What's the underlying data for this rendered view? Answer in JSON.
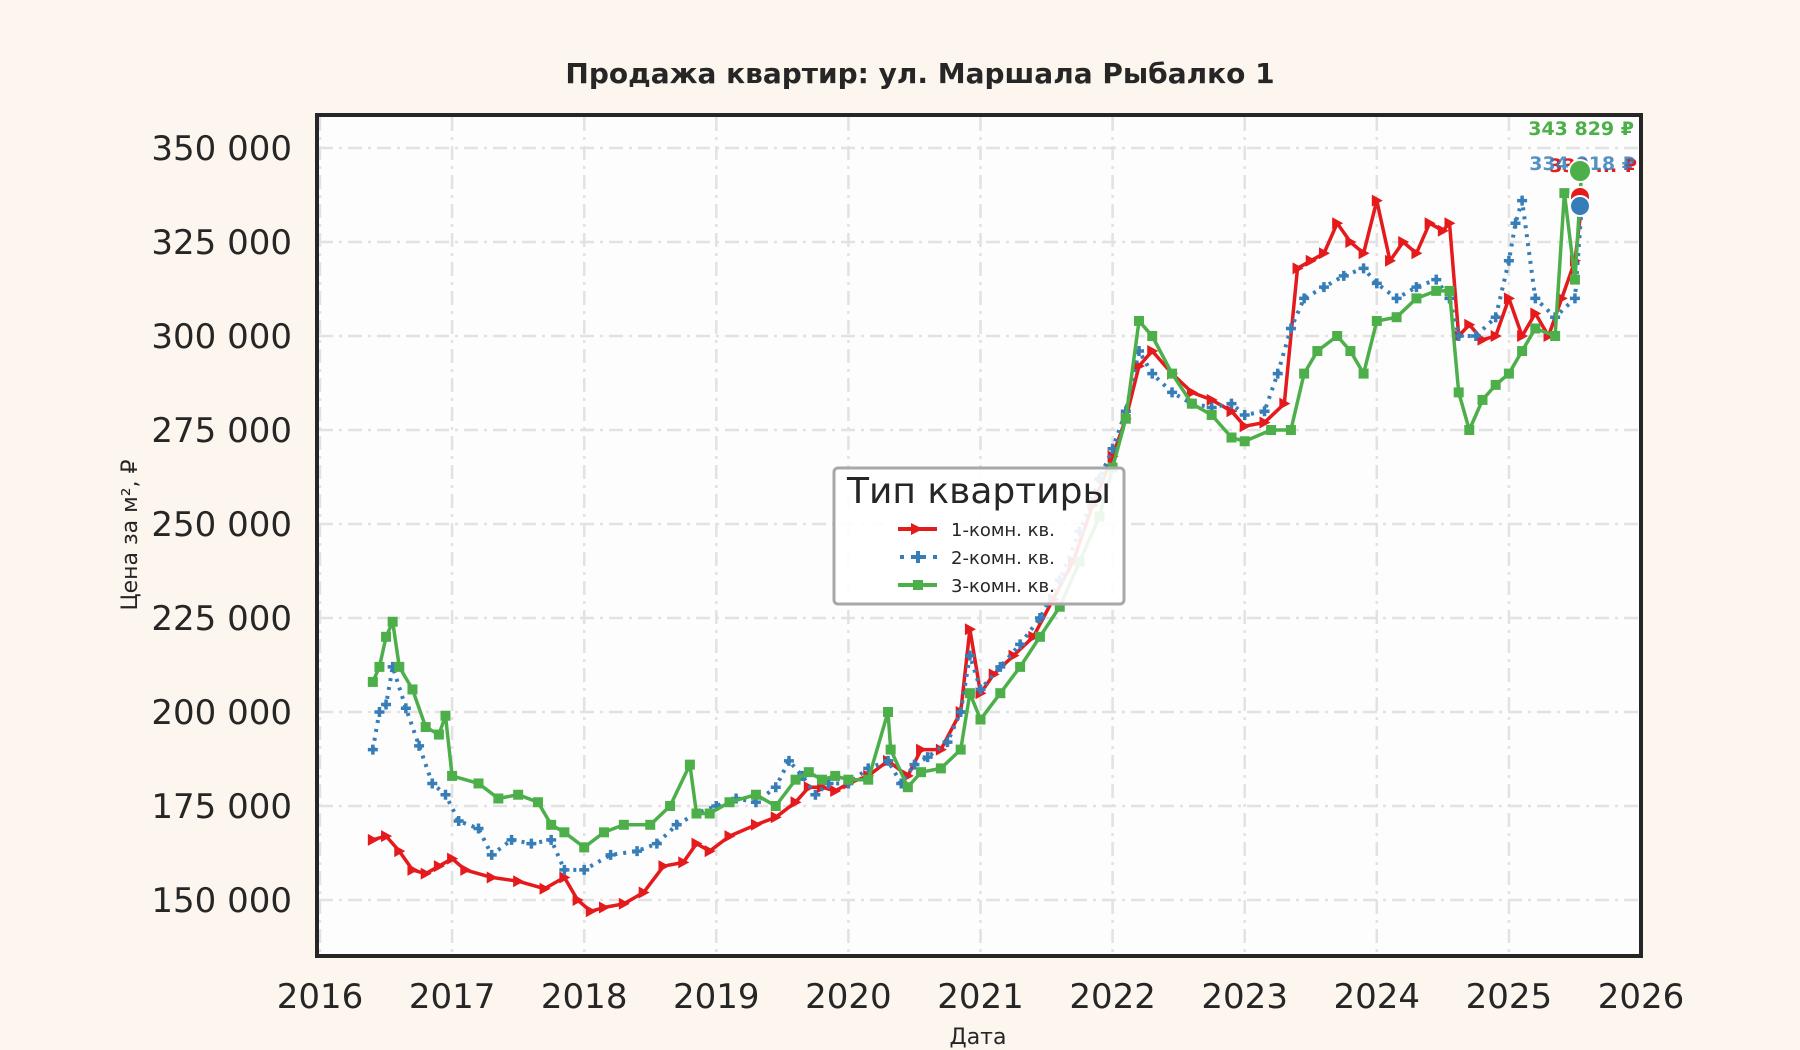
{
  "chart_data": {
    "type": "line",
    "title": "Продажа квартир: ул. Маршала Рыбалко 1",
    "xlabel": "Дата",
    "ylabel": "Цена за м², ₽",
    "xlim": [
      2016,
      2026
    ],
    "ylim": [
      136000,
      358000
    ],
    "x_ticks": [
      "2016",
      "2017",
      "2018",
      "2019",
      "2020",
      "2021",
      "2022",
      "2023",
      "2024",
      "2025",
      "2026"
    ],
    "y_ticks": [
      "150 000",
      "175 000",
      "200 000",
      "225 000",
      "250 000",
      "275 000",
      "300 000",
      "325 000",
      "350 000"
    ],
    "y_tick_values": [
      150000,
      175000,
      200000,
      225000,
      250000,
      275000,
      300000,
      325000,
      350000
    ],
    "grid": true,
    "legend": {
      "title": "Тип квартиры",
      "position": "center",
      "entries": [
        "1-комн. кв.",
        "2-комн. кв.",
        "3-комн. кв."
      ]
    },
    "series": [
      {
        "name": "1-комн. кв.",
        "color": "#e41a1c",
        "marker": "triangle-right",
        "linestyle": "solid",
        "x": [
          2016.4,
          2016.5,
          2016.6,
          2016.7,
          2016.8,
          2016.9,
          2017.0,
          2017.1,
          2017.3,
          2017.5,
          2017.7,
          2017.85,
          2017.95,
          2018.05,
          2018.15,
          2018.3,
          2018.45,
          2018.6,
          2018.75,
          2018.85,
          2018.95,
          2019.1,
          2019.3,
          2019.45,
          2019.6,
          2019.7,
          2019.8,
          2019.9,
          2020.0,
          2020.15,
          2020.3,
          2020.45,
          2020.55,
          2020.7,
          2020.85,
          2020.92,
          2021.0,
          2021.1,
          2021.25,
          2021.4,
          2021.55,
          2021.7,
          2021.85,
          2022.0,
          2022.1,
          2022.2,
          2022.3,
          2022.45,
          2022.6,
          2022.75,
          2022.9,
          2023.0,
          2023.15,
          2023.3,
          2023.4,
          2023.5,
          2023.6,
          2023.7,
          2023.8,
          2023.9,
          2024.0,
          2024.1,
          2024.2,
          2024.3,
          2024.4,
          2024.5,
          2024.55,
          2024.62,
          2024.7,
          2024.8,
          2024.9,
          2025.0,
          2025.1,
          2025.2,
          2025.3,
          2025.4,
          2025.5,
          2025.55
        ],
        "y": [
          166000,
          167000,
          163000,
          158000,
          157000,
          159000,
          161000,
          158000,
          156000,
          155000,
          153000,
          156000,
          150000,
          147000,
          148000,
          149000,
          152000,
          159000,
          160000,
          165000,
          163000,
          167000,
          170000,
          172000,
          176000,
          180000,
          180000,
          179000,
          181000,
          183000,
          187000,
          183000,
          190000,
          190000,
          200000,
          222000,
          205000,
          210000,
          215000,
          220000,
          230000,
          240000,
          255000,
          268000,
          278000,
          292000,
          296000,
          290000,
          285000,
          283000,
          280000,
          276000,
          277000,
          282000,
          318000,
          320000,
          322000,
          330000,
          325000,
          322000,
          336000,
          320000,
          325000,
          322000,
          330000,
          328000,
          330000,
          300000,
          303000,
          299000,
          300000,
          310000,
          300000,
          306000,
          300000,
          310000,
          320000,
          335000
        ]
      },
      {
        "name": "2-комн. кв.",
        "color": "#377eb8",
        "marker": "plus",
        "linestyle": "dotted",
        "x": [
          2016.4,
          2016.45,
          2016.5,
          2016.55,
          2016.65,
          2016.75,
          2016.85,
          2016.95,
          2017.05,
          2017.2,
          2017.3,
          2017.45,
          2017.6,
          2017.75,
          2017.85,
          2018.0,
          2018.2,
          2018.4,
          2018.55,
          2018.7,
          2018.85,
          2019.0,
          2019.15,
          2019.3,
          2019.45,
          2019.55,
          2019.65,
          2019.75,
          2019.85,
          2020.0,
          2020.15,
          2020.3,
          2020.4,
          2020.5,
          2020.6,
          2020.75,
          2020.85,
          2020.92,
          2021.0,
          2021.15,
          2021.3,
          2021.45,
          2021.6,
          2021.75,
          2021.9,
          2022.0,
          2022.1,
          2022.2,
          2022.3,
          2022.45,
          2022.6,
          2022.75,
          2022.9,
          2023.0,
          2023.15,
          2023.25,
          2023.35,
          2023.45,
          2023.6,
          2023.75,
          2023.9,
          2024.0,
          2024.15,
          2024.3,
          2024.45,
          2024.55,
          2024.62,
          2024.75,
          2024.9,
          2025.0,
          2025.05,
          2025.1,
          2025.2,
          2025.35,
          2025.5,
          2025.55
        ],
        "y": [
          190000,
          200000,
          202000,
          212000,
          201000,
          191000,
          181000,
          178000,
          171000,
          169000,
          162000,
          166000,
          165000,
          166000,
          158000,
          158000,
          162000,
          163000,
          165000,
          170000,
          173000,
          175000,
          177000,
          176000,
          180000,
          187000,
          183000,
          178000,
          181000,
          181000,
          185000,
          187000,
          181000,
          186000,
          188000,
          192000,
          200000,
          215000,
          206000,
          212000,
          218000,
          225000,
          235000,
          248000,
          262000,
          270000,
          280000,
          296000,
          290000,
          285000,
          282000,
          281000,
          282000,
          279000,
          280000,
          290000,
          302000,
          310000,
          313000,
          316000,
          318000,
          314000,
          310000,
          313000,
          315000,
          310000,
          300000,
          300000,
          305000,
          320000,
          330000,
          336000,
          310000,
          305000,
          310000,
          334018
        ]
      },
      {
        "name": "3-комн. кв.",
        "color": "#4daf4a",
        "marker": "square",
        "linestyle": "solid",
        "x": [
          2016.4,
          2016.45,
          2016.5,
          2016.55,
          2016.6,
          2016.7,
          2016.8,
          2016.9,
          2016.95,
          2017.0,
          2017.2,
          2017.35,
          2017.5,
          2017.65,
          2017.75,
          2017.85,
          2018.0,
          2018.15,
          2018.3,
          2018.5,
          2018.65,
          2018.8,
          2018.85,
          2018.95,
          2019.1,
          2019.3,
          2019.45,
          2019.6,
          2019.7,
          2019.8,
          2019.9,
          2020.0,
          2020.15,
          2020.3,
          2020.32,
          2020.45,
          2020.55,
          2020.7,
          2020.85,
          2020.92,
          2021.0,
          2021.15,
          2021.3,
          2021.45,
          2021.6,
          2021.75,
          2021.9,
          2022.0,
          2022.1,
          2022.2,
          2022.3,
          2022.45,
          2022.6,
          2022.75,
          2022.9,
          2023.0,
          2023.2,
          2023.35,
          2023.45,
          2023.55,
          2023.7,
          2023.8,
          2023.9,
          2024.0,
          2024.15,
          2024.3,
          2024.45,
          2024.55,
          2024.62,
          2024.7,
          2024.8,
          2024.9,
          2025.0,
          2025.1,
          2025.2,
          2025.35,
          2025.42,
          2025.5,
          2025.55
        ],
        "y": [
          208000,
          212000,
          220000,
          224000,
          212000,
          206000,
          196000,
          194000,
          199000,
          183000,
          181000,
          177000,
          178000,
          176000,
          170000,
          168000,
          164000,
          168000,
          170000,
          170000,
          175000,
          186000,
          173000,
          173000,
          176000,
          178000,
          175000,
          182000,
          184000,
          182000,
          183000,
          182000,
          182000,
          200000,
          190000,
          180000,
          184000,
          185000,
          190000,
          205000,
          198000,
          205000,
          212000,
          220000,
          228000,
          240000,
          252000,
          265000,
          278000,
          304000,
          300000,
          290000,
          282000,
          279000,
          273000,
          272000,
          275000,
          275000,
          290000,
          296000,
          300000,
          296000,
          290000,
          304000,
          305000,
          310000,
          312000,
          312000,
          285000,
          275000,
          283000,
          287000,
          290000,
          296000,
          302000,
          300000,
          338000,
          315000,
          343829
        ]
      }
    ],
    "end_labels": [
      {
        "series": "3-комн. кв.",
        "text": "343 829 ₽",
        "color": "#4daf4a"
      },
      {
        "series": "2-комн. кв.",
        "text": "334 018 ₽",
        "color": "#377eb8"
      },
      {
        "series": "1-комн. кв.",
        "text": "335 ... ₽",
        "color": "#e41a1c"
      }
    ]
  }
}
